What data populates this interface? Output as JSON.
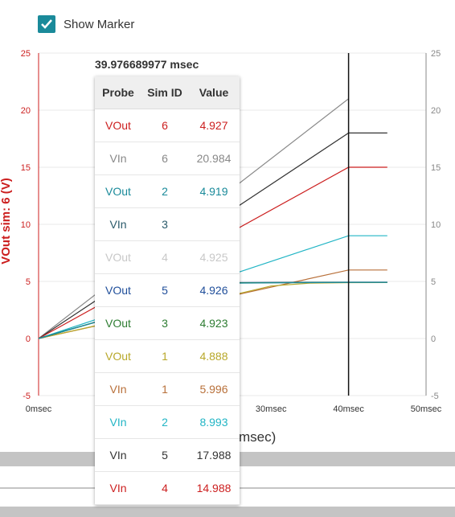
{
  "marker": {
    "label": "Show Marker",
    "checked": true
  },
  "tooltip": {
    "time": "39.976689977 msec",
    "headers": {
      "probe": "Probe",
      "sim_id": "Sim ID",
      "value": "Value"
    },
    "rows": [
      {
        "probe": "VOut",
        "sim_id": "6",
        "value": "4.927",
        "color": "#cc1f1f"
      },
      {
        "probe": "VIn",
        "sim_id": "6",
        "value": "20.984",
        "color": "#888888"
      },
      {
        "probe": "VOut",
        "sim_id": "2",
        "value": "4.919",
        "color": "#1a8a9a"
      },
      {
        "probe": "VIn",
        "sim_id": "3",
        "value": "",
        "color": "#2a5a6a"
      },
      {
        "probe": "VOut",
        "sim_id": "4",
        "value": "4.925",
        "color": "#c8c8c8"
      },
      {
        "probe": "VOut",
        "sim_id": "5",
        "value": "4.926",
        "color": "#1f4e9a"
      },
      {
        "probe": "VOut",
        "sim_id": "3",
        "value": "4.923",
        "color": "#2e7d32"
      },
      {
        "probe": "VOut",
        "sim_id": "1",
        "value": "4.888",
        "color": "#b8a82a"
      },
      {
        "probe": "VIn",
        "sim_id": "1",
        "value": "5.996",
        "color": "#b8703a"
      },
      {
        "probe": "VIn",
        "sim_id": "2",
        "value": "8.993",
        "color": "#22b5c5"
      },
      {
        "probe": "VIn",
        "sim_id": "5",
        "value": "17.988",
        "color": "#333333"
      },
      {
        "probe": "VIn",
        "sim_id": "4",
        "value": "14.988",
        "color": "#cc1f1f"
      }
    ]
  },
  "chart_data": {
    "type": "line",
    "ylabel": "VOut sim: 6 (V)",
    "xlabel_visible": "msec)",
    "x_ticks": [
      "0msec",
      "30msec",
      "40msec",
      "50msec"
    ],
    "x_tick_values": [
      0,
      30,
      40,
      50
    ],
    "xlim": [
      0,
      50
    ],
    "ylim": [
      -5,
      25
    ],
    "y_ticks": [
      -5,
      0,
      5,
      10,
      15,
      20,
      25
    ],
    "marker_x": 40,
    "colors": {
      "left_axis": "#cc1f1f",
      "right_axis": "#888888",
      "grid": "#e8e8e8"
    },
    "series": [
      {
        "color": "#888888",
        "x": [
          0,
          40
        ],
        "y": [
          0,
          21
        ]
      },
      {
        "color": "#333333",
        "x": [
          0,
          40,
          45
        ],
        "y": [
          0,
          18,
          18
        ]
      },
      {
        "color": "#cc1f1f",
        "x": [
          0,
          40,
          45
        ],
        "y": [
          0,
          15,
          15
        ]
      },
      {
        "color": "#22b5c5",
        "x": [
          0,
          40,
          45
        ],
        "y": [
          0,
          9,
          9
        ]
      },
      {
        "color": "#b8703a",
        "x": [
          0,
          40,
          45
        ],
        "y": [
          0,
          6,
          6
        ]
      },
      {
        "color": "#b8a82a",
        "x": [
          0,
          25,
          30,
          35,
          40,
          45
        ],
        "y": [
          0,
          3.8,
          4.6,
          4.85,
          4.89,
          4.9
        ]
      },
      {
        "color": "#1f4e9a",
        "x": [
          0,
          25,
          40,
          45
        ],
        "y": [
          0,
          4.9,
          4.93,
          4.93
        ]
      },
      {
        "color": "#2e7d32",
        "x": [
          0,
          25,
          40,
          45
        ],
        "y": [
          0,
          4.88,
          4.92,
          4.92
        ]
      },
      {
        "color": "#1a8a9a",
        "x": [
          0,
          25,
          40,
          45
        ],
        "y": [
          0,
          4.85,
          4.92,
          4.92
        ]
      }
    ]
  }
}
